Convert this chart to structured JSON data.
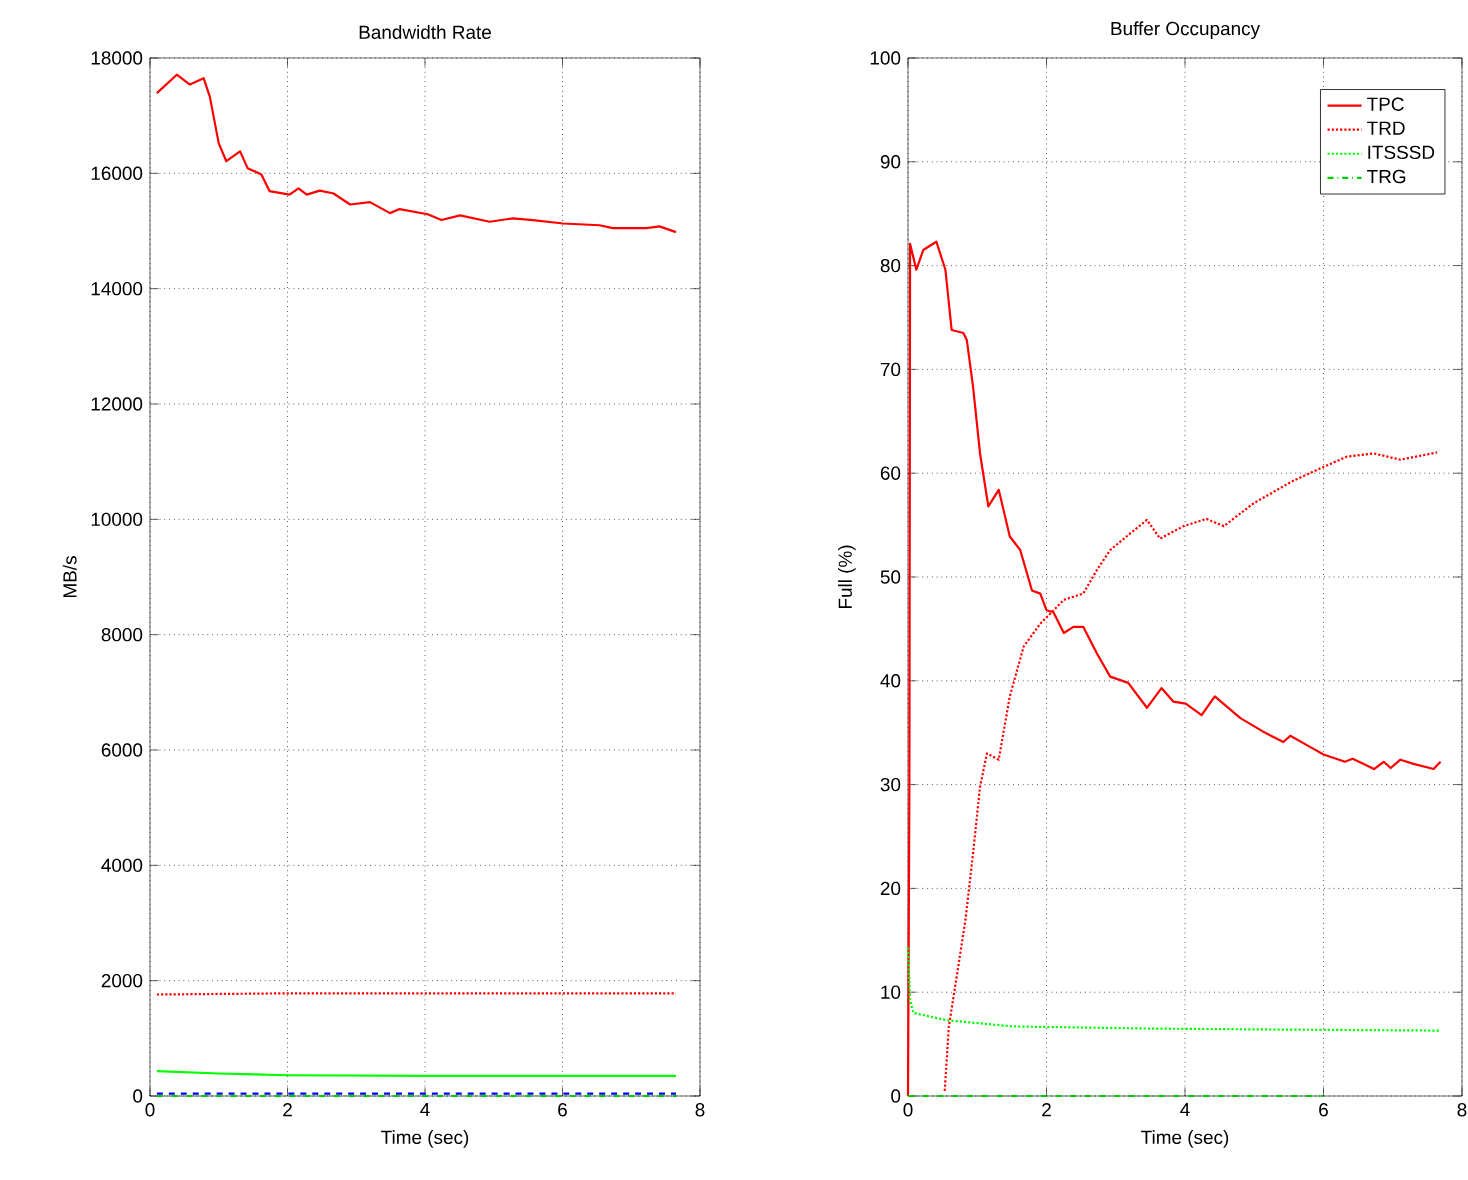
{
  "chart_data": [
    {
      "type": "line",
      "title": "Bandwidth Rate",
      "xlabel": "Time (sec)",
      "ylabel": "MB/s",
      "xlim": [
        0,
        8
      ],
      "ylim": [
        0,
        18000
      ],
      "xticks": [
        0,
        2,
        4,
        6,
        8
      ],
      "yticks": [
        0,
        2000,
        4000,
        6000,
        8000,
        10000,
        12000,
        14000,
        16000,
        18000
      ],
      "grid": true,
      "legend": false,
      "marker": "none",
      "series": [
        {
          "color": "#ff0000",
          "line_style": "solid",
          "x": [
            0.1,
            0.39,
            0.58,
            0.78,
            0.87,
            1.0,
            1.11,
            1.31,
            1.42,
            1.62,
            1.74,
            2.03,
            2.16,
            2.28,
            2.47,
            2.67,
            2.91,
            3.2,
            3.49,
            3.63,
            4.04,
            4.24,
            4.51,
            4.94,
            5.28,
            5.57,
            6.01,
            6.54,
            6.73,
            7.22,
            7.41,
            7.65
          ],
          "values": [
            17390,
            17710,
            17540,
            17650,
            17330,
            16520,
            16210,
            16380,
            16090,
            15980,
            15690,
            15630,
            15740,
            15630,
            15700,
            15650,
            15460,
            15500,
            15310,
            15380,
            15290,
            15190,
            15270,
            15160,
            15220,
            15190,
            15130,
            15100,
            15050,
            15050,
            15080,
            14980
          ]
        },
        {
          "color": "#ff0000",
          "line_style": "dotted",
          "x": [
            0.1,
            2.0,
            4.0,
            6.0,
            7.65
          ],
          "values": [
            1760,
            1780,
            1780,
            1780,
            1780
          ]
        },
        {
          "color": "#00ff00",
          "line_style": "solid",
          "x": [
            0.1,
            1.0,
            2.0,
            4.0,
            6.0,
            7.65
          ],
          "values": [
            430,
            390,
            360,
            350,
            350,
            350
          ]
        },
        {
          "color": "#0000ff",
          "line_style": "dashed",
          "x": [
            0.1,
            7.65
          ],
          "values": [
            40,
            40
          ]
        },
        {
          "color": "#00cc00",
          "line_style": "dashdot",
          "x": [
            0.1,
            7.65
          ],
          "values": [
            0,
            0
          ]
        }
      ]
    },
    {
      "type": "line",
      "title": "Buffer Occupancy",
      "xlabel": "Time (sec)",
      "ylabel": "Full (%)",
      "xlim": [
        0,
        8
      ],
      "ylim": [
        0,
        100
      ],
      "xticks": [
        0,
        2,
        4,
        6,
        8
      ],
      "yticks": [
        0,
        10,
        20,
        30,
        40,
        50,
        60,
        70,
        80,
        90,
        100
      ],
      "grid": true,
      "legend": "top right",
      "marker": "none",
      "series": [
        {
          "name": "TPC",
          "color": "#ff0000",
          "line_style": "solid",
          "x": [
            0,
            0.02,
            0.03,
            0.12,
            0.22,
            0.41,
            0.54,
            0.63,
            0.8,
            0.85,
            0.94,
            1.04,
            1.16,
            1.31,
            1.47,
            1.62,
            1.79,
            1.91,
            2.0,
            2.1,
            2.25,
            2.39,
            2.53,
            2.73,
            2.92,
            3.18,
            3.45,
            3.66,
            3.83,
            4.01,
            4.24,
            4.43,
            4.8,
            5.13,
            5.42,
            5.52,
            5.76,
            6.0,
            6.31,
            6.42,
            6.73,
            6.87,
            6.97,
            7.11,
            7.3,
            7.59,
            7.69
          ],
          "values": [
            0,
            30,
            82.1,
            79.6,
            81.5,
            82.3,
            79.6,
            73.8,
            73.5,
            72.8,
            68.3,
            61.9,
            56.8,
            58.4,
            53.9,
            52.6,
            48.7,
            48.4,
            46.8,
            46.6,
            44.6,
            45.2,
            45.2,
            42.6,
            40.4,
            39.8,
            37.4,
            39.3,
            38.0,
            37.8,
            36.7,
            38.5,
            36.4,
            35.1,
            34.1,
            34.7,
            33.8,
            32.9,
            32.2,
            32.5,
            31.5,
            32.2,
            31.6,
            32.4,
            32.0,
            31.5,
            32.2
          ]
        },
        {
          "name": "TRD",
          "color": "#ff0000",
          "line_style": "dotted",
          "x": [
            0.53,
            0.59,
            0.71,
            0.83,
            0.94,
            1.04,
            1.14,
            1.31,
            1.47,
            1.67,
            1.91,
            2.25,
            2.53,
            2.73,
            2.92,
            3.21,
            3.45,
            3.64,
            3.98,
            4.31,
            4.56,
            4.99,
            5.57,
            6.0,
            6.34,
            6.73,
            7.11,
            7.64
          ],
          "values": [
            0.5,
            6.7,
            11.8,
            17.0,
            23.4,
            29.8,
            33.0,
            32.4,
            38.5,
            43.3,
            45.5,
            47.8,
            48.4,
            50.7,
            52.6,
            54.2,
            55.5,
            53.7,
            54.9,
            55.6,
            54.9,
            57.1,
            59.3,
            60.6,
            61.6,
            61.9,
            61.3,
            62.0
          ]
        },
        {
          "name": "ITSSSD",
          "color": "#00ff00",
          "line_style": "dotted",
          "x": [
            0,
            0.03,
            0.08,
            0.56,
            1.52,
            3.45,
            5.38,
            7.69
          ],
          "values": [
            14.3,
            9.2,
            8.0,
            7.3,
            6.7,
            6.5,
            6.4,
            6.3
          ]
        },
        {
          "name": "TRG",
          "color": "#00cc00",
          "line_style": "dashdot",
          "x": [
            0,
            2.5,
            4.0,
            6.0
          ],
          "values": [
            0,
            0,
            0,
            0
          ]
        }
      ]
    }
  ]
}
